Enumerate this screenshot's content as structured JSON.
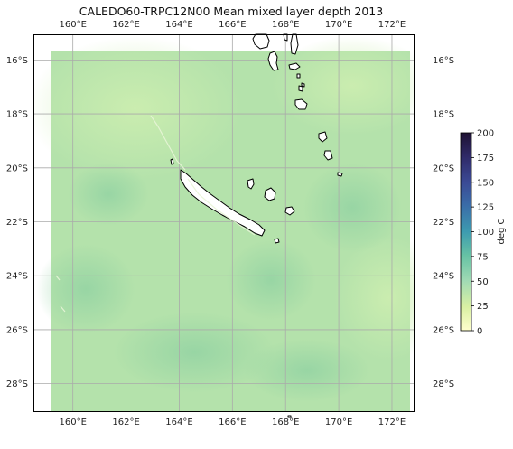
{
  "map": {
    "title": "CALEDO60-TRPC12N00 Mean mixed layer depth 2013",
    "lon_range": [
      158.55,
      172.85
    ],
    "lat_range": [
      -29.05,
      -15.05
    ],
    "data_extent": {
      "lon": [
        159.2,
        172.3
      ],
      "lat": [
        -28.8,
        -15.7
      ]
    },
    "lon_ticks": [
      160,
      162,
      164,
      166,
      168,
      170,
      172
    ],
    "lat_ticks": [
      -16,
      -18,
      -20,
      -22,
      -24,
      -26,
      -28
    ],
    "lon_tick_labels": [
      "160°E",
      "162°E",
      "164°E",
      "166°E",
      "168°E",
      "170°E",
      "172°E"
    ],
    "lat_tick_labels": [
      "16°S",
      "18°S",
      "20°S",
      "22°S",
      "24°S",
      "26°S",
      "28°S"
    ],
    "grid": true,
    "colormap": "YlGnBu-like (cream to dark purple)",
    "land_color": "#ffffff",
    "coastline_color": "#000000"
  },
  "colorbar": {
    "label": "deg C",
    "min": 0,
    "max": 200,
    "ticks": [
      "0",
      "25",
      "50",
      "75",
      "100",
      "125",
      "150",
      "175",
      "200"
    ],
    "colors": [
      "#ffffcc",
      "#c7e9b4",
      "#7fcdbb",
      "#41b6c4",
      "#2c7fb8",
      "#253494",
      "#231942",
      "#1a1030"
    ]
  }
}
